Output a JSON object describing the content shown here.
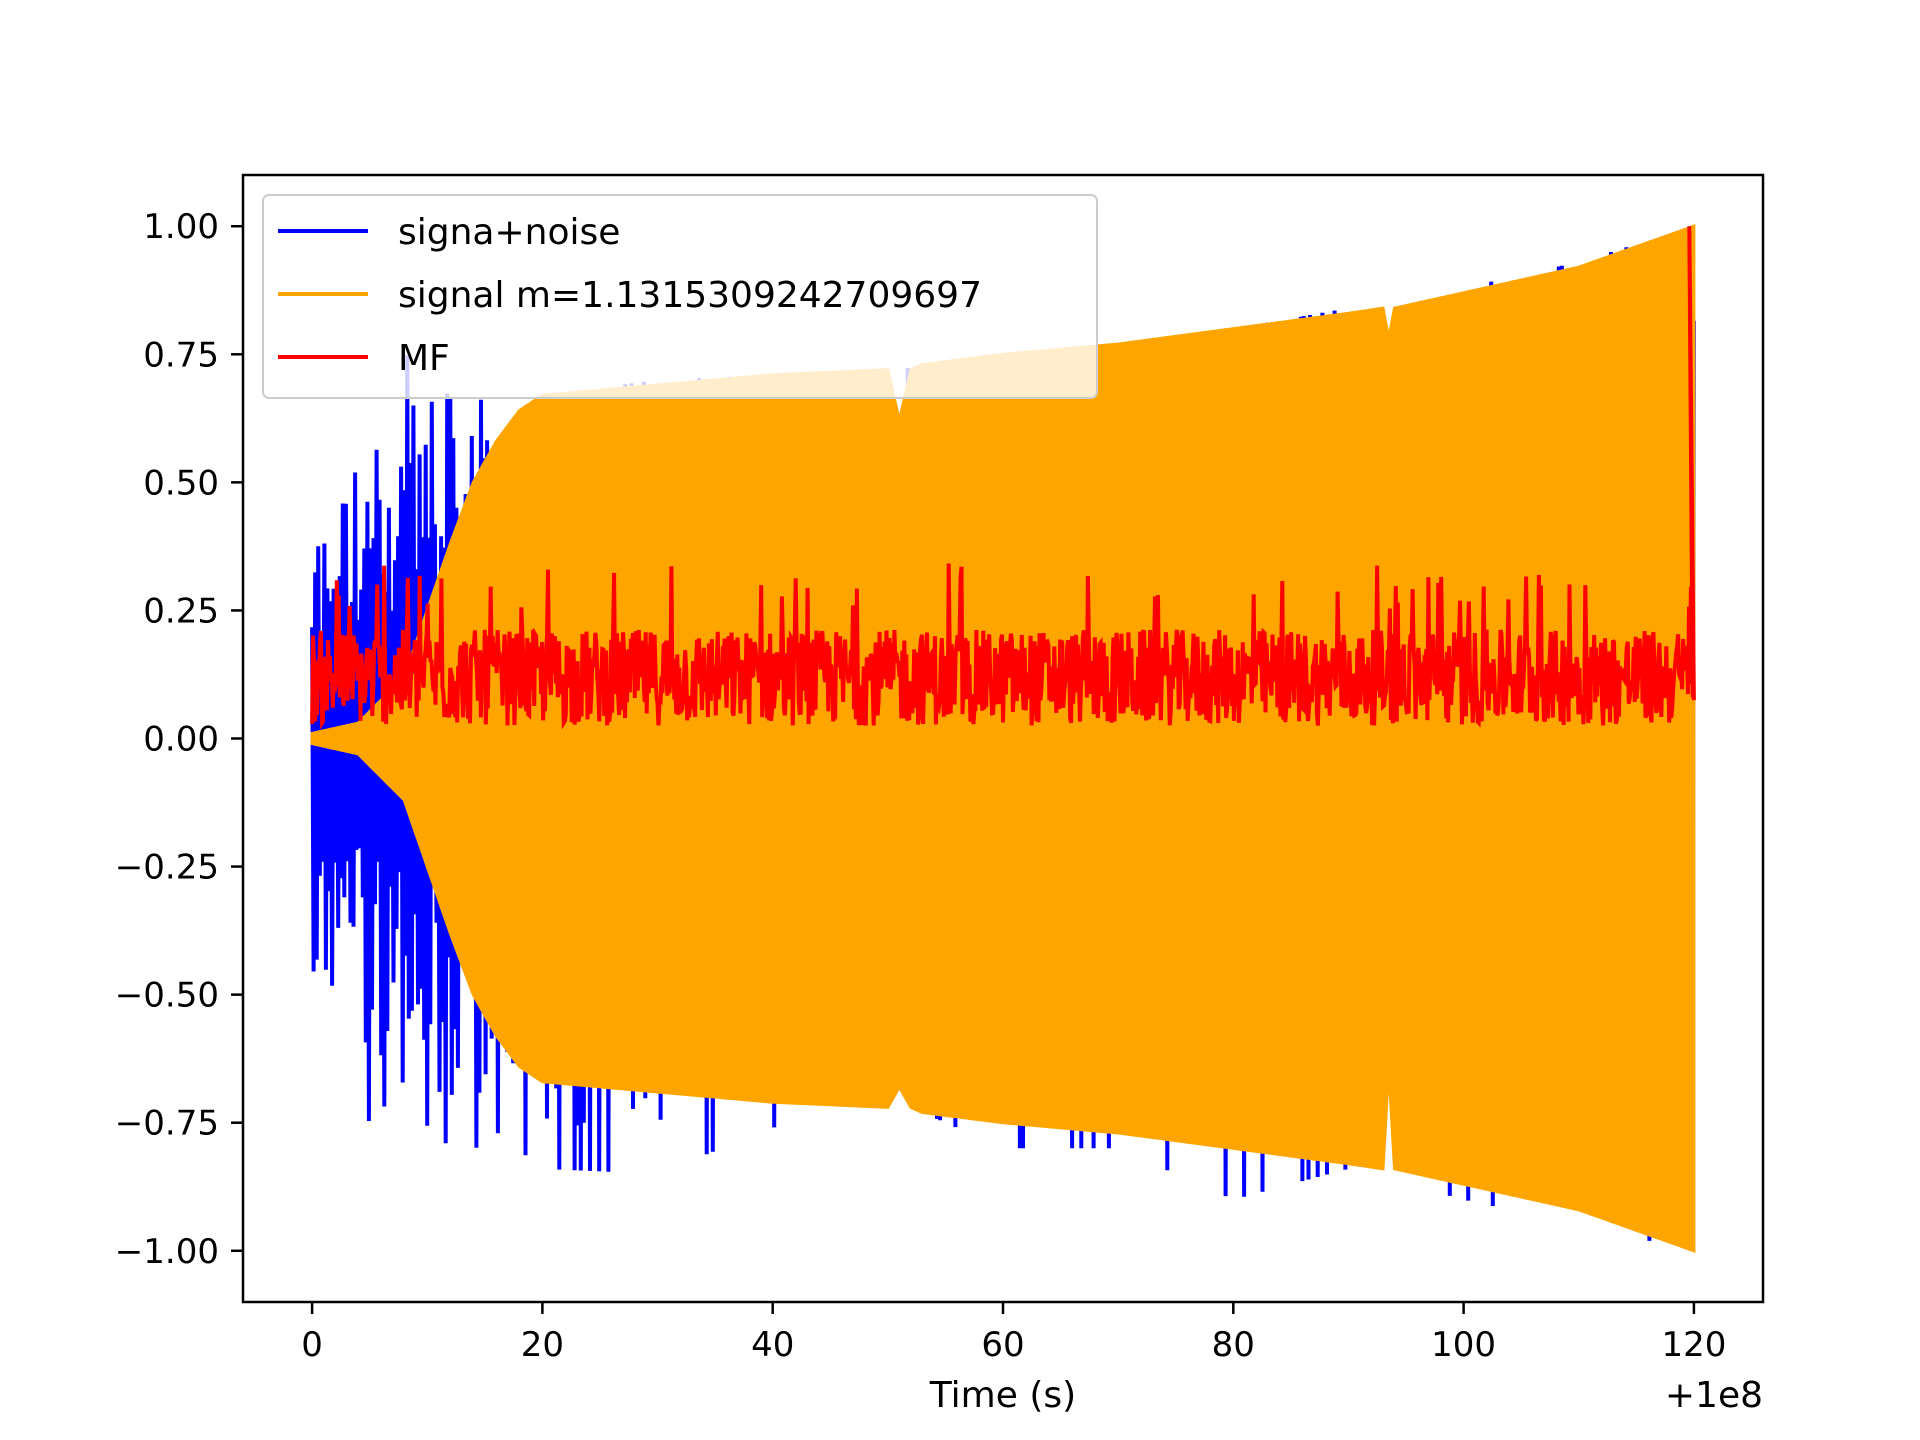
{
  "chart_data": {
    "type": "line",
    "xlabel": "Time (s)",
    "ylabel": "",
    "x_offset_label": "+1e8",
    "xlim": [
      -6,
      126
    ],
    "ylim": [
      -1.1,
      1.1
    ],
    "xticks": [
      0,
      20,
      40,
      60,
      80,
      100,
      120
    ],
    "xtick_labels": [
      "0",
      "20",
      "40",
      "60",
      "80",
      "100",
      "120"
    ],
    "yticks": [
      1.0,
      0.75,
      0.5,
      0.25,
      0.0,
      -0.25,
      -0.5,
      -0.75,
      -1.0
    ],
    "ytick_labels": [
      "1.00",
      "0.75",
      "0.50",
      "0.25",
      "0.00",
      "−0.25",
      "−0.50",
      "−0.75",
      "−1.00"
    ],
    "legend_position": "top-left",
    "grid": false,
    "series": [
      {
        "name": "signa+noise",
        "color": "#0000ff",
        "x_range": [
          0,
          120
        ],
        "approx_envelope": {
          "x": [
            0,
            5,
            10,
            12,
            15,
            20,
            30,
            40,
            50,
            60,
            70,
            80,
            90,
            100,
            110,
            120
          ],
          "upper": [
            0.45,
            0.65,
            0.8,
            0.75,
            0.65,
            0.67,
            0.7,
            0.71,
            0.72,
            0.74,
            0.77,
            0.8,
            0.84,
            0.88,
            0.93,
            1.0
          ],
          "lower": [
            -0.5,
            -0.75,
            -0.95,
            -0.95,
            -0.75,
            -0.84,
            -0.85,
            -0.76,
            -0.7,
            -0.8,
            -0.8,
            -0.9,
            -0.84,
            -0.9,
            -0.95,
            -1.0
          ]
        }
      },
      {
        "name": "signal m=1.1315309242709697",
        "color": "#ffa500",
        "x_range": [
          0,
          120
        ],
        "envelope": {
          "x": [
            0,
            4,
            8,
            10,
            12,
            14,
            16,
            18,
            20,
            30,
            40,
            50,
            51,
            52,
            53,
            60,
            70,
            80,
            90,
            93,
            93.5,
            94,
            100,
            110,
            120
          ],
          "upper": [
            0.01,
            0.03,
            0.12,
            0.25,
            0.38,
            0.5,
            0.58,
            0.64,
            0.67,
            0.69,
            0.71,
            0.72,
            0.62,
            0.72,
            0.73,
            0.75,
            0.77,
            0.8,
            0.83,
            0.84,
            0.78,
            0.84,
            0.87,
            0.92,
            1.0
          ],
          "lower": [
            -0.01,
            -0.03,
            -0.12,
            -0.25,
            -0.38,
            -0.5,
            -0.58,
            -0.64,
            -0.67,
            -0.69,
            -0.71,
            -0.72,
            -0.68,
            -0.72,
            -0.73,
            -0.75,
            -0.77,
            -0.8,
            -0.83,
            -0.84,
            -0.64,
            -0.84,
            -0.87,
            -0.92,
            -1.0
          ]
        }
      },
      {
        "name": "MF",
        "color": "#ff0000",
        "x_range": [
          0,
          120
        ],
        "approx_band": [
          0.0,
          0.25
        ],
        "approx_mean": 0.08,
        "peak": {
          "x": 119.6,
          "y": 1.0
        }
      }
    ]
  }
}
